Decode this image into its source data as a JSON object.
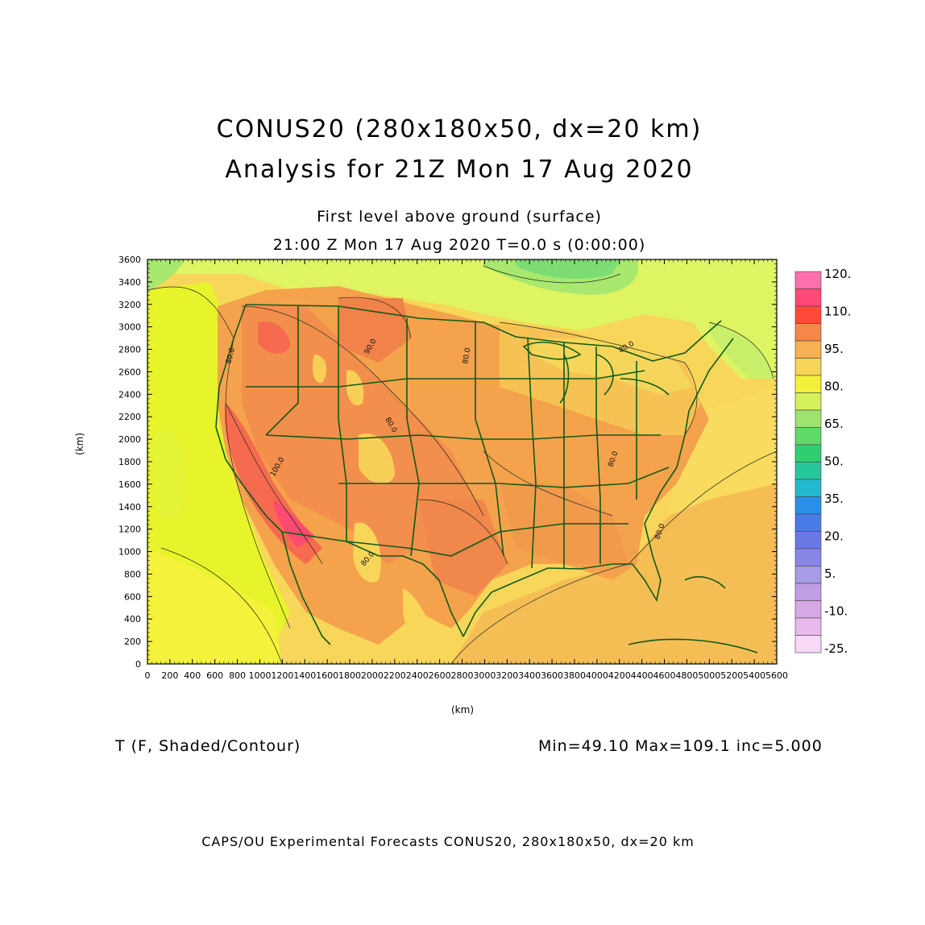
{
  "title": {
    "line1": "CONUS20 (280x180x50, dx=20 km)",
    "line2": "Analysis for 21Z Mon 17 Aug 2020"
  },
  "subtitle": {
    "line1": "First level above ground (surface)",
    "line2": "21:00 Z Mon 17 Aug 2020    T=0.0 s (0:00:00)"
  },
  "axes": {
    "xlabel": "(km)",
    "ylabel": "(km)",
    "x_ticks": [
      "0",
      "200",
      "400",
      "600",
      "800",
      "1000",
      "1200",
      "1400",
      "1600",
      "1800",
      "2000",
      "2200",
      "2400",
      "2600",
      "2800",
      "3000",
      "3200",
      "3400",
      "3600",
      "3800",
      "4000",
      "4200",
      "4400",
      "4600",
      "4800",
      "5000",
      "5200",
      "5400",
      "5600"
    ],
    "y_ticks": [
      "0",
      "200",
      "400",
      "600",
      "800",
      "1000",
      "1200",
      "1400",
      "1600",
      "1800",
      "2000",
      "2200",
      "2400",
      "2600",
      "2800",
      "3000",
      "3200",
      "3400",
      "3600"
    ],
    "xlim": [
      0,
      5600
    ],
    "ylim": [
      0,
      3600
    ]
  },
  "colorbar": {
    "labels": [
      "120.",
      "110.",
      "95.",
      "80.",
      "65.",
      "50.",
      "35.",
      "20.",
      "5.",
      "-10.",
      "-25."
    ],
    "colors": [
      "#ff6fae",
      "#ff4a78",
      "#ff4a3a",
      "#f6874a",
      "#f7b052",
      "#f6d457",
      "#f3f13c",
      "#d4f05a",
      "#9fe36f",
      "#5fd96a",
      "#2fcf6f",
      "#27c79b",
      "#22b9cf",
      "#2a8fe6",
      "#4a7ae8",
      "#6a78e6",
      "#8a86e8",
      "#a79ce6",
      "#c09de4",
      "#d7a8e6",
      "#e9b9ec",
      "#f8d8f7"
    ]
  },
  "contour_labels": [
    "90.0",
    "80.0",
    "100.0",
    "80.0",
    "80.0",
    "80.0",
    "80.0",
    "80.0",
    "80.0"
  ],
  "field": {
    "variable": "T (F, Shaded/Contour)",
    "stats": "Min=49.10  Max=109.1  inc=5.000"
  },
  "footer": "CAPS/OU Experimental Forecasts  CONUS20, 280x180x50, dx=20 km"
}
